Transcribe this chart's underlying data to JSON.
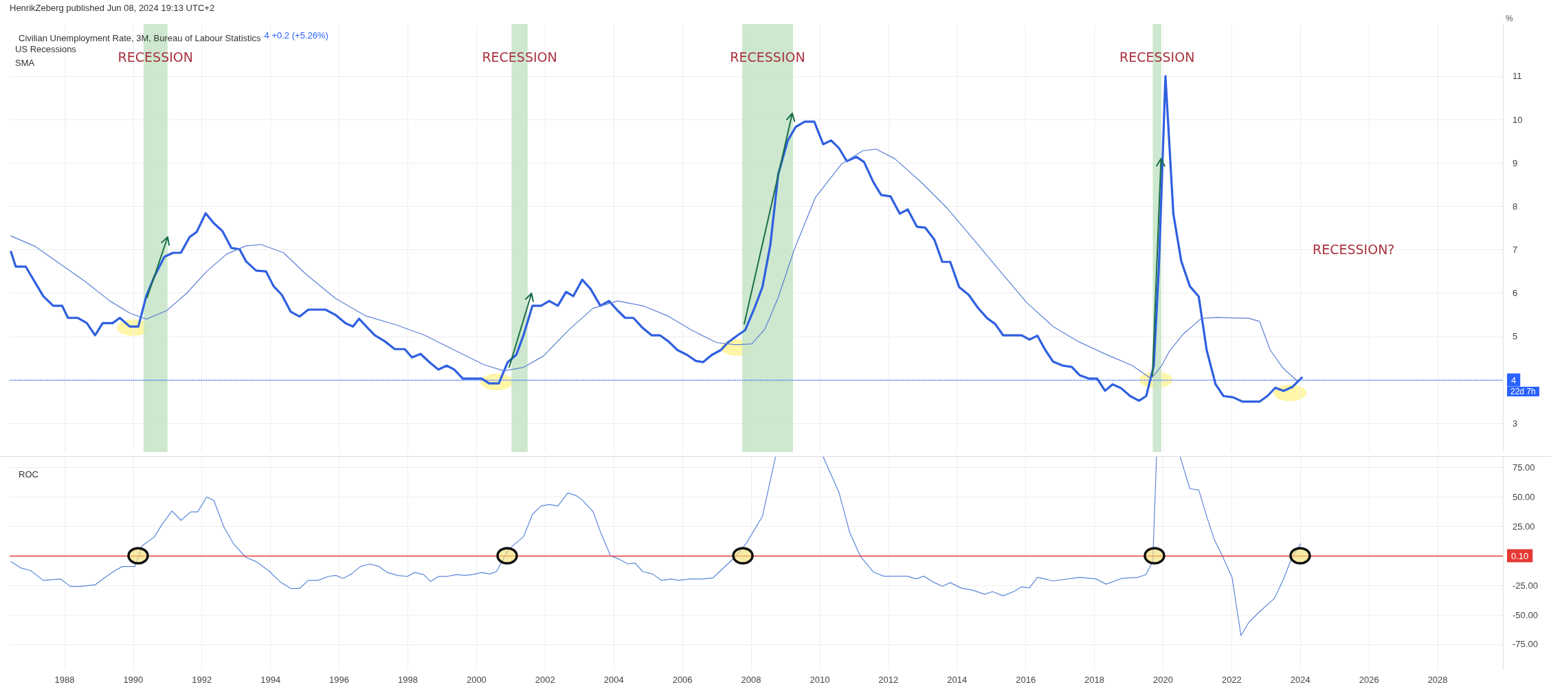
{
  "chart_data": [
    {
      "type": "line",
      "title": "Civilian Unemployment Rate, 3M, Bureau of Labour Statistics",
      "ylabel": "%",
      "annotations": [
        "HenrikZeberg published Jun 08, 2024 19:13 UTC+2",
        "4 +0.2 (+5.26%)",
        "US Recessions",
        "SMA",
        "RECESSION?",
        "22d 7h"
      ],
      "xlim": [
        1986.4,
        2029.9
      ],
      "xticks": [
        1988,
        1990,
        1992,
        1994,
        1996,
        1998,
        2000,
        2002,
        2004,
        2006,
        2008,
        2010,
        2012,
        2014,
        2016,
        2018,
        2020,
        2022,
        2024,
        2026,
        2028
      ],
      "ylim": [
        2.34,
        12.2
      ],
      "yticks": [
        3,
        4,
        5,
        6,
        7,
        8,
        9,
        10,
        11
      ],
      "tick_labels": "y",
      "grid": true,
      "marker": "none",
      "bands": [
        {
          "axis": "x",
          "from": 1990.3,
          "to": 1991.0,
          "label": "RECESSION",
          "color": "#c8e6c9"
        },
        {
          "axis": "x",
          "from": 2001.02,
          "to": 2001.49,
          "label": "RECESSION",
          "color": "#c8e6c9"
        },
        {
          "axis": "x",
          "from": 2007.74,
          "to": 2009.22,
          "label": "RECESSION",
          "color": "#c8e6c9"
        },
        {
          "axis": "x",
          "from": 2019.7,
          "to": 2019.95,
          "label": "RECESSION",
          "color": "#c8e6c9"
        }
      ],
      "ref_lines": [
        {
          "axis": "y",
          "value": 4,
          "label": "4",
          "color": "#2962ff",
          "line_style": "dotted"
        }
      ],
      "series": [
        {
          "color": "#2f5fe0",
          "x": [
            1986.44,
            1986.58,
            1986.87,
            1987.38,
            1987.67,
            1987.93,
            1988.1,
            1988.39,
            1988.65,
            1988.89,
            1989.11,
            1989.4,
            1989.61,
            1989.9,
            1990.15,
            1990.38,
            1990.62,
            1990.91,
            1991.16,
            1991.39,
            1991.64,
            1991.85,
            1992.11,
            1992.35,
            1992.6,
            1992.86,
            1993.1,
            1993.29,
            1993.58,
            1993.87,
            1994.09,
            1994.33,
            1994.59,
            1994.85,
            1995.1,
            1995.6,
            1995.89,
            1996.18,
            1996.4,
            1996.58,
            1996.83,
            1997.04,
            1997.33,
            1997.62,
            1997.91,
            1998.12,
            1998.37,
            1998.63,
            1998.89,
            1999.13,
            1999.35,
            1999.6,
            2000.15,
            2000.37,
            2000.65,
            2000.91,
            2001.16,
            2001.37,
            2001.63,
            2001.88,
            2002.12,
            2002.37,
            2002.61,
            2002.82,
            2003.08,
            2003.32,
            2003.61,
            2003.86,
            2004.11,
            2004.33,
            2004.57,
            2004.84,
            2005.1,
            2005.34,
            2005.59,
            2005.85,
            2006.13,
            2006.39,
            2006.6,
            2006.86,
            2007.12,
            2007.32,
            2007.61,
            2007.83,
            2008.1,
            2008.33,
            2008.56,
            2008.79,
            2009.07,
            2009.3,
            2009.56,
            2009.84,
            2010.1,
            2010.33,
            2010.56,
            2010.79,
            2011.07,
            2011.29,
            2011.56,
            2011.79,
            2012.06,
            2012.33,
            2012.56,
            2012.83,
            2013.07,
            2013.34,
            2013.57,
            2013.8,
            2014.06,
            2014.34,
            2014.61,
            2014.88,
            2015.11,
            2015.34,
            2015.65,
            2015.88,
            2016.11,
            2016.34,
            2016.57,
            2016.8,
            2017.08,
            2017.34,
            2017.57,
            2017.85,
            2018.08,
            2018.31,
            2018.53,
            2018.78,
            2019.04,
            2019.3,
            2019.51,
            2019.73,
            2019.88,
            2020.07,
            2020.3,
            2020.53,
            2020.78,
            2021.04,
            2021.27,
            2021.53,
            2021.76,
            2022.04,
            2022.32,
            2022.81,
            2023.04,
            2023.27,
            2023.51,
            2023.77,
            2024.04
          ],
          "values": [
            6.95,
            6.61,
            6.61,
            5.93,
            5.71,
            5.71,
            5.43,
            5.43,
            5.31,
            5.03,
            5.31,
            5.31,
            5.43,
            5.23,
            5.23,
            5.93,
            6.39,
            6.84,
            6.93,
            6.93,
            7.29,
            7.41,
            7.84,
            7.61,
            7.43,
            7.04,
            7.01,
            6.73,
            6.52,
            6.5,
            6.16,
            5.96,
            5.57,
            5.46,
            5.62,
            5.62,
            5.5,
            5.31,
            5.23,
            5.41,
            5.2,
            5.03,
            4.89,
            4.71,
            4.71,
            4.52,
            4.6,
            4.41,
            4.24,
            4.33,
            4.24,
            4.03,
            4.03,
            3.92,
            3.92,
            4.41,
            4.58,
            5.03,
            5.71,
            5.71,
            5.82,
            5.71,
            6.03,
            5.93,
            6.31,
            6.1,
            5.71,
            5.82,
            5.6,
            5.43,
            5.43,
            5.2,
            5.03,
            5.03,
            4.89,
            4.69,
            4.58,
            4.44,
            4.41,
            4.58,
            4.69,
            4.86,
            5.03,
            5.15,
            5.66,
            6.14,
            7.11,
            8.74,
            9.52,
            9.83,
            9.95,
            9.95,
            9.43,
            9.52,
            9.34,
            9.04,
            9.14,
            9.02,
            8.56,
            8.26,
            8.23,
            7.83,
            7.93,
            7.53,
            7.51,
            7.23,
            6.72,
            6.72,
            6.14,
            5.96,
            5.66,
            5.42,
            5.29,
            5.03,
            5.03,
            5.03,
            4.93,
            5.02,
            4.69,
            4.42,
            4.33,
            4.3,
            4.11,
            4.03,
            4.03,
            3.75,
            3.9,
            3.81,
            3.63,
            3.52,
            3.63,
            4.33,
            6.62,
            11.0,
            7.83,
            6.74,
            6.16,
            5.92,
            4.69,
            3.9,
            3.63,
            3.6,
            3.5,
            3.5,
            3.63,
            3.82,
            3.75,
            3.84,
            4.05
          ]
        },
        {
          "color": "#5b7fd6",
          "x": [
            1986.44,
            1987.16,
            1987.88,
            1988.6,
            1989.32,
            1989.9,
            1990.38,
            1990.98,
            1991.56,
            1992.14,
            1992.72,
            1993.29,
            1993.73,
            1994.38,
            1995.03,
            1995.89,
            1996.76,
            1997.62,
            1998.49,
            1999.35,
            2000.22,
            2000.8,
            2001.37,
            2001.95,
            2002.67,
            2003.39,
            2004.11,
            2004.84,
            2005.56,
            2006.28,
            2007.0,
            2007.56,
            2008.02,
            2008.4,
            2008.79,
            2009.25,
            2009.87,
            2010.64,
            2011.25,
            2011.64,
            2012.18,
            2012.95,
            2013.72,
            2014.49,
            2015.26,
            2016.03,
            2016.8,
            2017.57,
            2018.34,
            2019.11,
            2019.65,
            2019.96,
            2020.19,
            2020.58,
            2021.12,
            2021.58,
            2022.5,
            2022.81,
            2023.12,
            2023.5,
            2023.89,
            2024.04
          ],
          "values": [
            7.32,
            7.07,
            6.67,
            6.27,
            5.82,
            5.54,
            5.4,
            5.6,
            6.0,
            6.5,
            6.9,
            7.09,
            7.12,
            6.93,
            6.44,
            5.88,
            5.48,
            5.28,
            5.03,
            4.69,
            4.35,
            4.21,
            4.29,
            4.55,
            5.14,
            5.65,
            5.82,
            5.71,
            5.48,
            5.14,
            4.86,
            4.81,
            4.83,
            5.17,
            5.9,
            6.99,
            8.2,
            8.98,
            9.28,
            9.32,
            9.1,
            8.56,
            7.95,
            7.23,
            6.5,
            5.78,
            5.23,
            4.87,
            4.59,
            4.33,
            4.03,
            4.33,
            4.67,
            5.05,
            5.42,
            5.44,
            5.42,
            5.35,
            4.69,
            4.27,
            3.99,
            4.03
          ]
        }
      ]
    },
    {
      "type": "line",
      "title": "ROC",
      "xlim": [
        1986.4,
        2029.9
      ],
      "xticks": [
        1988,
        1990,
        1992,
        1994,
        1996,
        1998,
        2000,
        2002,
        2004,
        2006,
        2008,
        2010,
        2012,
        2014,
        2016,
        2018,
        2020,
        2022,
        2024,
        2026,
        2028
      ],
      "ylim": [
        -96.6,
        84
      ],
      "yticks": [
        {
          "value": 75,
          "label": "75.00"
        },
        {
          "value": 50,
          "label": "50.00"
        },
        {
          "value": 25,
          "label": "25.00"
        },
        {
          "value": -25,
          "label": "-25.00"
        },
        {
          "value": -50,
          "label": "-50.00"
        },
        {
          "value": -75,
          "label": "-75.00"
        }
      ],
      "grid": true,
      "marker": "none",
      "ref_lines": [
        {
          "axis": "y",
          "value": 0.1,
          "label": "0.10",
          "color": "#e53935",
          "line_style": "solid"
        }
      ],
      "series": [
        {
          "color": "#5b86d9",
          "x": [
            1986.44,
            1986.73,
            1987.01,
            1987.38,
            1987.88,
            1988.17,
            1988.46,
            1988.89,
            1989.18,
            1989.47,
            1989.69,
            1990.05,
            1990.26,
            1990.62,
            1990.84,
            1991.13,
            1991.39,
            1991.68,
            1991.88,
            1992.14,
            1992.35,
            1992.64,
            1992.93,
            1993.29,
            1993.58,
            1993.94,
            1994.3,
            1994.59,
            1994.85,
            1995.1,
            1995.39,
            1995.68,
            1995.9,
            1996.11,
            1996.36,
            1996.62,
            1996.9,
            1997.16,
            1997.41,
            1997.7,
            1997.98,
            1998.2,
            1998.46,
            1998.66,
            1998.89,
            1999.13,
            1999.42,
            1999.64,
            1999.9,
            2000.15,
            2000.39,
            2000.58,
            2000.94,
            2001.37,
            2001.63,
            2001.88,
            2002.12,
            2002.37,
            2002.66,
            2002.9,
            2003.11,
            2003.4,
            2003.61,
            2003.9,
            2004.15,
            2004.41,
            2004.62,
            2004.84,
            2005.13,
            2005.39,
            2005.68,
            2005.88,
            2006.21,
            2006.57,
            2006.89,
            2007.36,
            2007.56,
            2007.87,
            2008.33,
            2008.71,
            2009.4,
            2010.1,
            2010.56,
            2010.87,
            2011.18,
            2011.56,
            2011.87,
            2012.56,
            2012.8,
            2013.03,
            2013.34,
            2013.57,
            2013.8,
            2014.11,
            2014.49,
            2014.8,
            2015.03,
            2015.34,
            2015.65,
            2015.88,
            2016.11,
            2016.34,
            2016.8,
            2017.57,
            2018.04,
            2018.34,
            2018.8,
            2019.27,
            2019.5,
            2019.7,
            2019.81,
            2020.1,
            2020.5,
            2020.78,
            2021.04,
            2021.27,
            2021.5,
            2021.73,
            2022.01,
            2022.27,
            2022.5,
            2022.81,
            2023.24,
            2023.5,
            2023.74,
            2024.01
          ],
          "values": [
            -4.8,
            -10.3,
            -12.4,
            -20.8,
            -19.6,
            -25.9,
            -25.9,
            -24.6,
            -18.3,
            -12.4,
            -9.0,
            -9.0,
            8.6,
            16.2,
            26.7,
            38.1,
            30.1,
            37.3,
            37.3,
            49.9,
            47.0,
            24.6,
            9.9,
            -1.5,
            -4.8,
            -12.4,
            -22.5,
            -27.6,
            -27.6,
            -20.8,
            -20.8,
            -17.5,
            -16.6,
            -19.1,
            -15.4,
            -9.0,
            -6.9,
            -9.0,
            -14.1,
            -16.6,
            -17.5,
            -14.1,
            -15.8,
            -21.7,
            -17.5,
            -17.5,
            -15.8,
            -16.6,
            -15.8,
            -14.1,
            -15.4,
            -13.3,
            5.7,
            16.2,
            35.2,
            42.3,
            43.6,
            42.3,
            53.3,
            51.2,
            46.5,
            37.3,
            20.4,
            0.2,
            -2.7,
            -6.9,
            -6.1,
            -13.3,
            -15.4,
            -20.8,
            -19.6,
            -20.8,
            -19.6,
            -19.6,
            -18.7,
            -5.7,
            -0.2,
            11.1,
            33.5,
            83.9,
            null,
            83.9,
            53.8,
            20.0,
            -0.2,
            -13.7,
            -17.3,
            -17.3,
            -19.5,
            -17.3,
            -22.7,
            -25.8,
            -22.7,
            -27.2,
            -29.4,
            -32.6,
            -30.3,
            -33.9,
            -30.3,
            -26.3,
            -27.2,
            -18.2,
            -21.3,
            -18.2,
            -19.5,
            -24.0,
            -19.1,
            -18.2,
            -15.9,
            -4.7,
            83.9,
            null,
            83.9,
            56.9,
            56.0,
            33.5,
            13.3,
            -0.2,
            -18.2,
            -67.6,
            -56.4,
            -47.4,
            -36.2,
            -20.4,
            -2.4,
            10.2
          ]
        }
      ]
    }
  ]
}
